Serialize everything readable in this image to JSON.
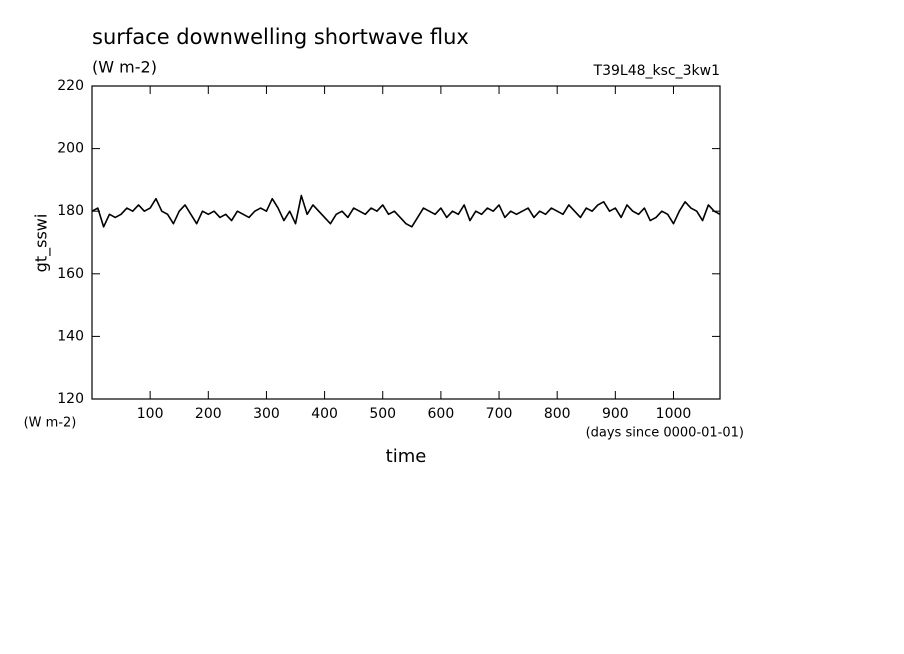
{
  "chart_data": {
    "type": "line",
    "title": "surface downwelling shortwave flux",
    "subtitle": "(W m-2)",
    "annotation": "T39L48_ksc_3kw1",
    "y_label": "gt_sswi",
    "y_unit": "(W m-2)",
    "x_label": "time",
    "x_unit": "(days since 0000-01-01)",
    "xlim": [
      0,
      1080
    ],
    "ylim": [
      120,
      220
    ],
    "xticks": [
      100,
      200,
      300,
      400,
      500,
      600,
      700,
      800,
      900,
      1000
    ],
    "yticks": [
      120,
      140,
      160,
      180,
      200,
      220
    ],
    "x": [
      0,
      10,
      20,
      30,
      40,
      50,
      60,
      70,
      80,
      90,
      100,
      110,
      120,
      130,
      140,
      150,
      160,
      170,
      180,
      190,
      200,
      210,
      220,
      230,
      240,
      250,
      260,
      270,
      280,
      290,
      300,
      310,
      320,
      330,
      340,
      350,
      360,
      370,
      380,
      390,
      400,
      410,
      420,
      430,
      440,
      450,
      460,
      470,
      480,
      490,
      500,
      510,
      520,
      530,
      540,
      550,
      560,
      570,
      580,
      590,
      600,
      610,
      620,
      630,
      640,
      650,
      660,
      670,
      680,
      690,
      700,
      710,
      720,
      730,
      740,
      750,
      760,
      770,
      780,
      790,
      800,
      810,
      820,
      830,
      840,
      850,
      860,
      870,
      880,
      890,
      900,
      910,
      920,
      930,
      940,
      950,
      960,
      970,
      980,
      990,
      1000,
      1010,
      1020,
      1030,
      1040,
      1050,
      1060,
      1070,
      1080
    ],
    "series": [
      {
        "color": "#000000",
        "values": [
          180,
          181,
          175,
          179,
          178,
          179,
          181,
          180,
          182,
          180,
          181,
          184,
          180,
          179,
          176,
          180,
          182,
          179,
          176,
          180,
          179,
          180,
          178,
          179,
          177,
          180,
          179,
          178,
          180,
          181,
          180,
          184,
          181,
          177,
          180,
          176,
          185,
          179,
          182,
          180,
          178,
          176,
          179,
          180,
          178,
          181,
          180,
          179,
          181,
          180,
          182,
          179,
          180,
          178,
          176,
          175,
          178,
          181,
          180,
          179,
          181,
          178,
          180,
          179,
          182,
          177,
          180,
          179,
          181,
          180,
          182,
          178,
          180,
          179,
          180,
          181,
          178,
          180,
          179,
          181,
          180,
          179,
          182,
          180,
          178,
          181,
          180,
          182,
          183,
          180,
          181,
          178,
          182,
          180,
          179,
          181,
          177,
          178,
          180,
          179,
          176,
          180,
          183,
          181,
          180,
          177,
          182,
          180,
          179
        ]
      }
    ]
  }
}
